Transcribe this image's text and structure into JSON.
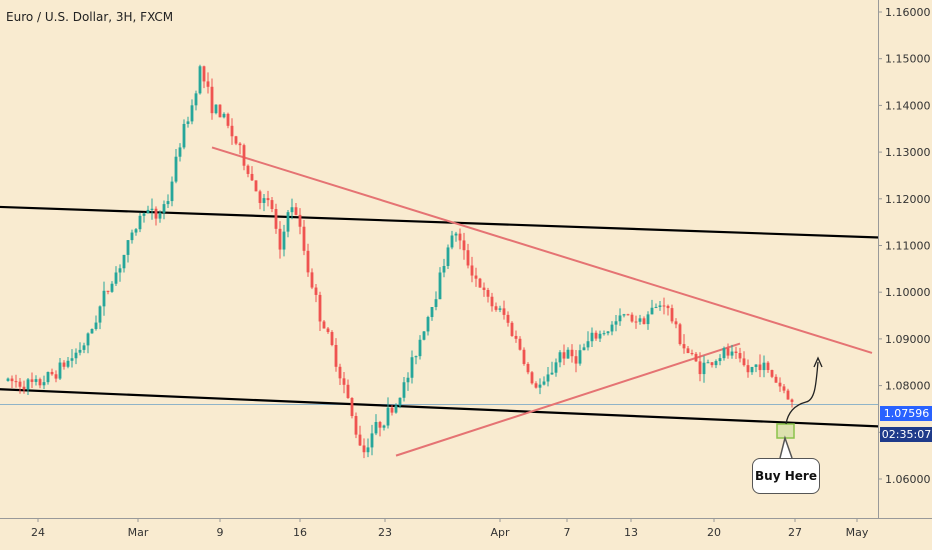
{
  "header": {
    "title": "Euro / U.S. Dollar, 3H, FXCM"
  },
  "annotation": {
    "buy_label": "Buy Here"
  },
  "price_tags": {
    "last_price": "1.07596",
    "countdown": "02:35:07"
  },
  "colors": {
    "background": "#f9ebd0",
    "up_candle": "#26a69a",
    "down_candle": "#ef5350",
    "channel_line": "#000000",
    "triangle_line": "#e57373",
    "price_line": "#90b4c8",
    "tag_bg": "#2962ff",
    "zone": "#8bc34a"
  },
  "chart_data": {
    "type": "candlestick",
    "title": "Euro / U.S. Dollar, 3H, FXCM",
    "x_ticks": [
      "24",
      "Mar",
      "9",
      "16",
      "23",
      "Apr",
      "7",
      "13",
      "20",
      "27",
      "May"
    ],
    "y_ticks": [
      "1.16000",
      "1.15000",
      "1.14000",
      "1.13000",
      "1.12000",
      "1.11000",
      "1.10000",
      "1.09000",
      "1.08000",
      "1.07000",
      "1.06000"
    ],
    "ylim": [
      1.0555,
      1.1615
    ],
    "price_path": [
      [
        0,
        1.081
      ],
      [
        7,
        1.08
      ],
      [
        12,
        1.083
      ],
      [
        16,
        1.086
      ],
      [
        20,
        1.09
      ],
      [
        24,
        1.099
      ],
      [
        28,
        1.106
      ],
      [
        31,
        1.112
      ],
      [
        34,
        1.118
      ],
      [
        37,
        1.116
      ],
      [
        40,
        1.12
      ],
      [
        43,
        1.132
      ],
      [
        46,
        1.14
      ],
      [
        48,
        1.148
      ],
      [
        51,
        1.14
      ],
      [
        54,
        1.137
      ],
      [
        57,
        1.132
      ],
      [
        60,
        1.126
      ],
      [
        63,
        1.12
      ],
      [
        66,
        1.118
      ],
      [
        68,
        1.108
      ],
      [
        70,
        1.118
      ],
      [
        72,
        1.117
      ],
      [
        75,
        1.105
      ],
      [
        78,
        1.095
      ],
      [
        81,
        1.088
      ],
      [
        84,
        1.08
      ],
      [
        87,
        1.07
      ],
      [
        89,
        1.066
      ],
      [
        91,
        1.07
      ],
      [
        94,
        1.073
      ],
      [
        97,
        1.076
      ],
      [
        100,
        1.082
      ],
      [
        103,
        1.09
      ],
      [
        107,
        1.1
      ],
      [
        110,
        1.11
      ],
      [
        112,
        1.113
      ],
      [
        114,
        1.108
      ],
      [
        117,
        1.103
      ],
      [
        120,
        1.098
      ],
      [
        124,
        1.095
      ],
      [
        128,
        1.088
      ],
      [
        131,
        1.08
      ],
      [
        134,
        1.08
      ],
      [
        138,
        1.087
      ],
      [
        142,
        1.086
      ],
      [
        146,
        1.09
      ],
      [
        150,
        1.092
      ],
      [
        154,
        1.095
      ],
      [
        158,
        1.094
      ],
      [
        161,
        1.096
      ],
      [
        164,
        1.098
      ],
      [
        166,
        1.094
      ],
      [
        168,
        1.09
      ],
      [
        170,
        1.087
      ],
      [
        173,
        1.084
      ],
      [
        176,
        1.085
      ],
      [
        179,
        1.087
      ],
      [
        182,
        1.086
      ],
      [
        185,
        1.083
      ],
      [
        188,
        1.085
      ],
      [
        191,
        1.082
      ],
      [
        194,
        1.079
      ],
      [
        196,
        1.0762
      ]
    ],
    "trend_lines": [
      {
        "name": "upper-channel",
        "kind": "channel",
        "x1": -10,
        "y1": 1.1185,
        "x2": 225,
        "y2": 1.1115
      },
      {
        "name": "lower-channel",
        "kind": "channel",
        "x1": -10,
        "y1": 1.0795,
        "x2": 225,
        "y2": 1.071
      },
      {
        "name": "triangle-upper",
        "kind": "triangle",
        "x1": 51,
        "y1": 1.131,
        "x2": 216,
        "y2": 1.087
      },
      {
        "name": "triangle-lower",
        "kind": "triangle",
        "x1": 97,
        "y1": 1.065,
        "x2": 183,
        "y2": 1.089
      }
    ]
  }
}
